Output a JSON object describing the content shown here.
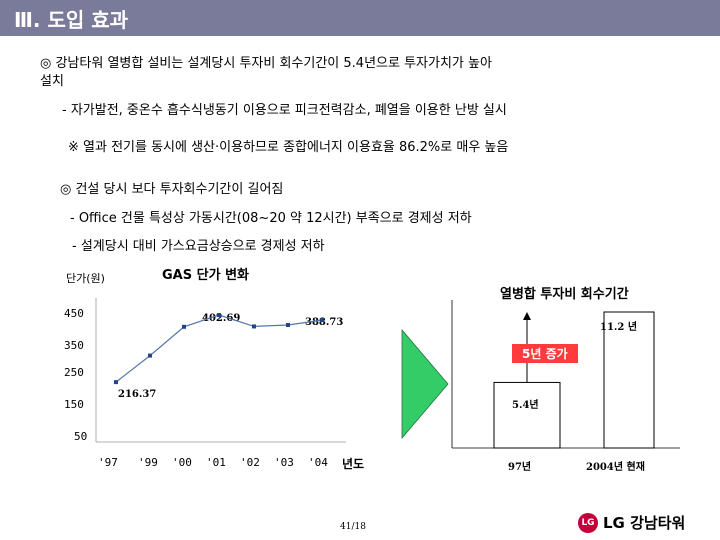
{
  "header": {
    "title": "Ⅲ. 도입 효과"
  },
  "body": {
    "point1": "◎ 강남타워 열병합 설비는 설계당시 투자비 회수기간이 5.4년으로 투자가치가 높아",
    "point1_cont": "설치",
    "point1_sub": "-  자가발전, 중온수 흡수식냉동기 이용으로 피크전력감소, 폐열을 이용한 난방 실시",
    "note": "※ 열과 전기를 동시에 생산·이용하므로 종합에너지 이용효율 86.2%로 매우 높음",
    "point2": "◎  건설 당시 보다 투자회수기간이 길어짐",
    "point2_sub1": "- Office 건물 특성상 가동시간(08~20 약 12시간) 부족으로 경제성 저하",
    "point2_sub2": "- 설계당시 대비 가스요금상승으로 경제성 저하"
  },
  "chart_data": [
    {
      "type": "line",
      "title": "GAS  단가 변화",
      "ylabel": "단가(원)",
      "xlabel": "년도",
      "categories": [
        "'97",
        "'99",
        "'00",
        "'01",
        "'02",
        "'03",
        "'04"
      ],
      "values": [
        216.37,
        290,
        370,
        402.69,
        371,
        375,
        388.73
      ],
      "data_labels": {
        "0": "216.37",
        "3": "402.69",
        "6": "388.73"
      },
      "yticks": [
        "450",
        "350",
        "250",
        "150",
        "50"
      ],
      "ylim": [
        50,
        450
      ],
      "grid": false
    },
    {
      "type": "bar",
      "title": "열병합 투자비 회수기간",
      "categories": [
        "97년",
        "2004년 현재"
      ],
      "values": [
        5.4,
        11.2
      ],
      "value_labels": [
        "5.4년",
        "11.2 년"
      ],
      "annotation": "5년 증가"
    }
  ],
  "footer": {
    "page": "41/18",
    "logo_mark": "LG",
    "logo_text": "LG 강남타워"
  }
}
